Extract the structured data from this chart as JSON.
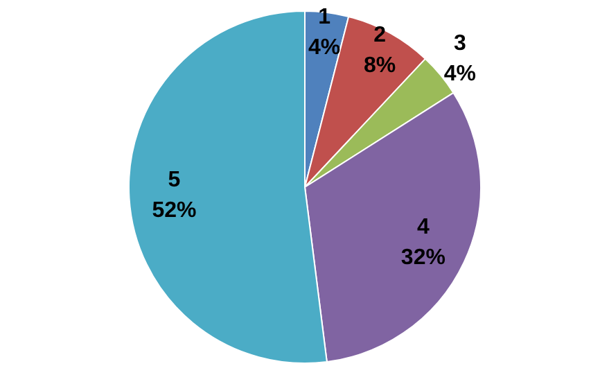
{
  "chart_data": {
    "type": "pie",
    "categories": [
      "1",
      "2",
      "3",
      "4",
      "5"
    ],
    "values": [
      4,
      8,
      4,
      32,
      52
    ],
    "colors": [
      "#4f81bd",
      "#c0504d",
      "#9bbb59",
      "#8064a2",
      "#4bacc6"
    ],
    "value_labels": [
      "4%",
      "8%",
      "4%",
      "32%",
      "52%"
    ],
    "data_labels": true
  }
}
